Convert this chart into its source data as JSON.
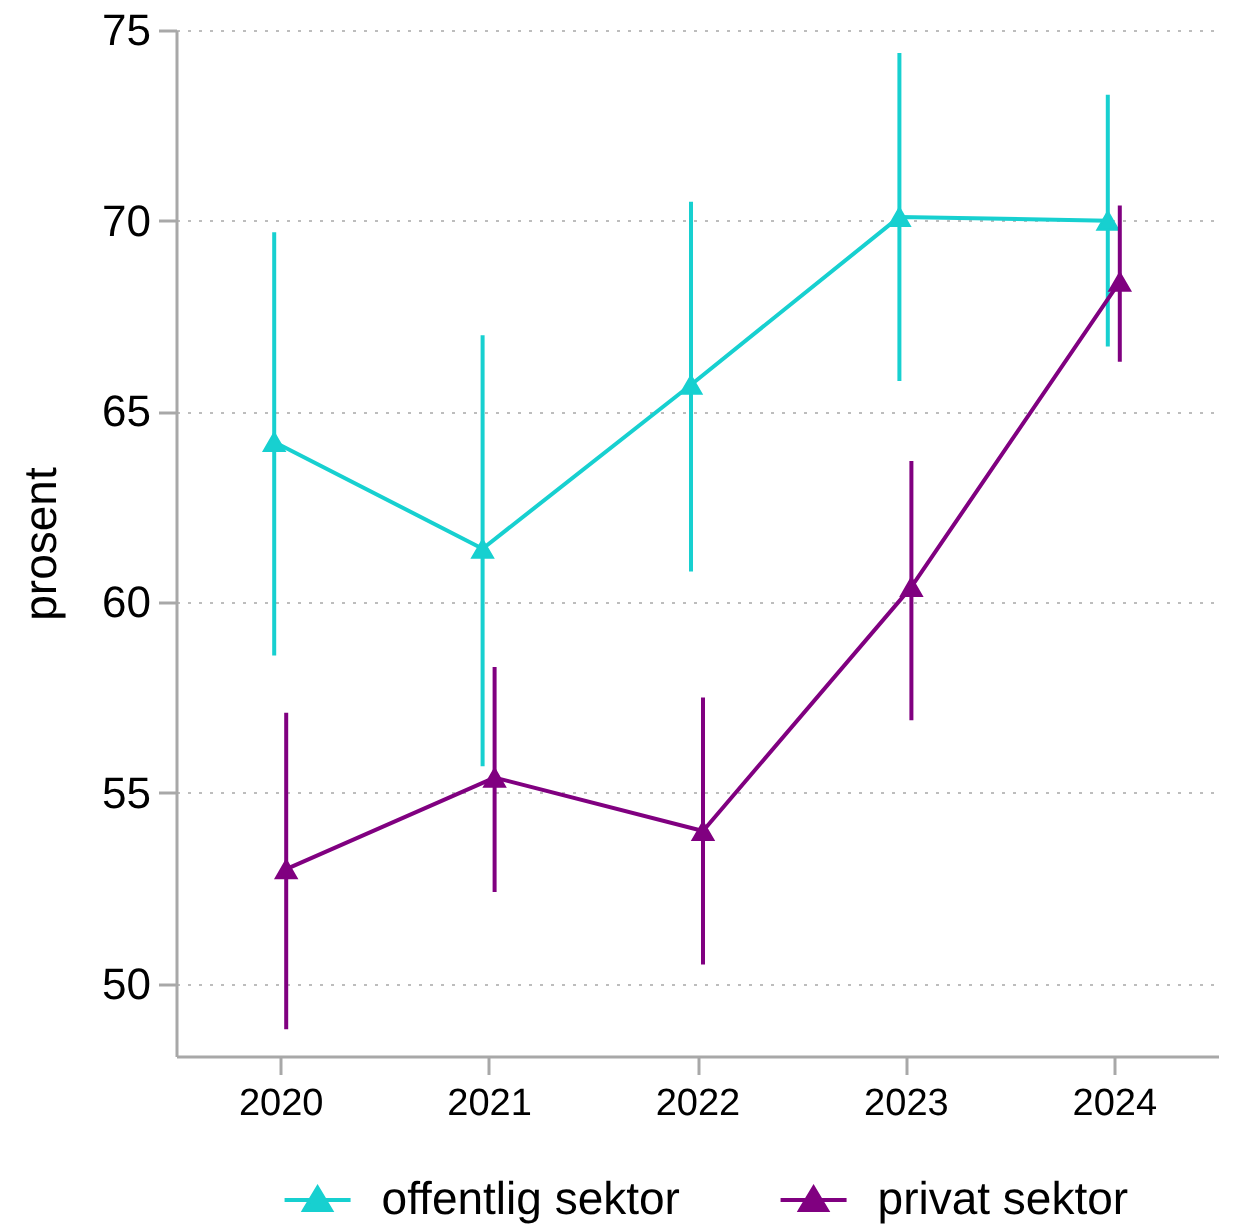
{
  "chart_data": {
    "type": "line",
    "ylabel": "prosent",
    "categories": [
      "2020",
      "2021",
      "2022",
      "2023",
      "2024"
    ],
    "ylim": [
      48.1,
      75
    ],
    "yticks": [
      50,
      55,
      60,
      65,
      70,
      75
    ],
    "grid": "y",
    "legend": "bottom",
    "marker": "triangle",
    "line_style": "solid",
    "series": [
      {
        "name": "offentlig sektor",
        "color": "#17d0d0",
        "values": [
          64.2,
          61.4,
          65.7,
          70.1,
          70.0
        ],
        "errors": [
          [
            58.6,
            69.7
          ],
          [
            55.7,
            67.0
          ],
          [
            60.8,
            70.5
          ],
          [
            65.8,
            74.4
          ],
          [
            66.7,
            73.3
          ]
        ]
      },
      {
        "name": "privat sektor",
        "color": "#800080",
        "values": [
          53.0,
          55.4,
          54.0,
          60.4,
          68.4
        ],
        "errors": [
          [
            48.8,
            57.1
          ],
          [
            52.4,
            58.3
          ],
          [
            50.5,
            57.5
          ],
          [
            56.9,
            63.7
          ],
          [
            66.3,
            70.4
          ]
        ]
      }
    ]
  }
}
